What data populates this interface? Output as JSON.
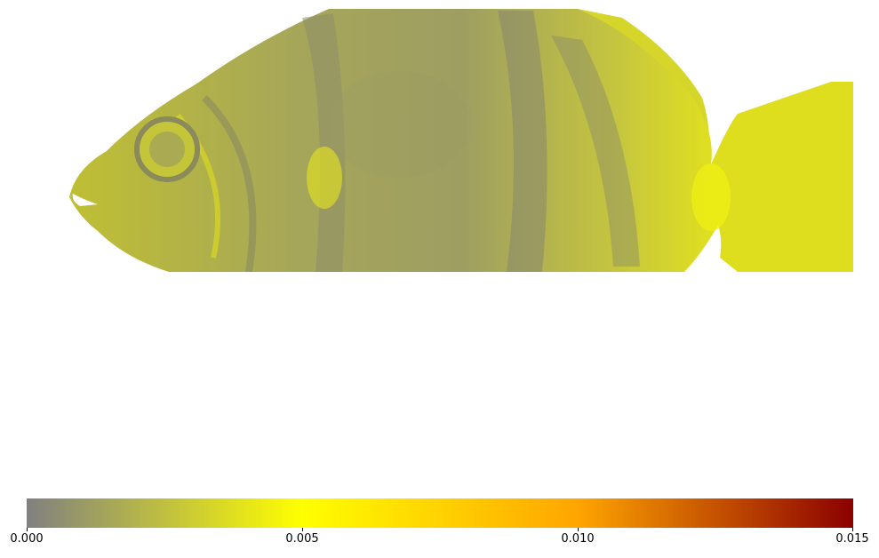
{
  "colorbar": {
    "colors": [
      "#808080",
      "#ffff00",
      "#ffa500",
      "#8b0000"
    ],
    "ticks": [
      "0.000",
      "0.005",
      "0.010",
      "0.015"
    ],
    "range": [
      0,
      0.015
    ]
  },
  "image": {
    "subject": "fish",
    "base_color": "#b8b83a",
    "highlight_color": "#e8e817",
    "shadow_color": "#8a8a5e"
  }
}
